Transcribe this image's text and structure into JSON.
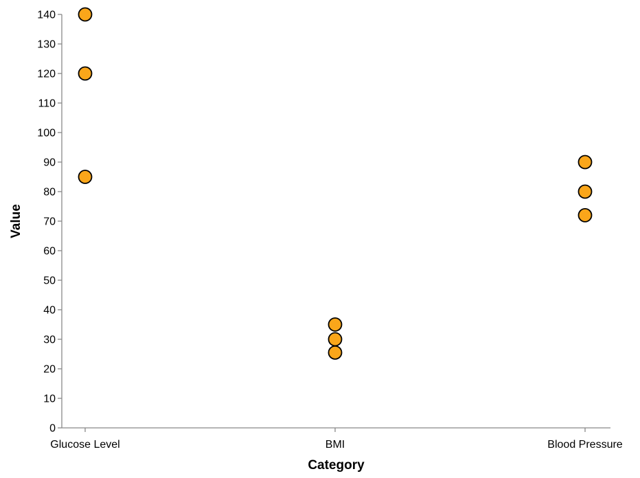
{
  "chart_data": {
    "type": "scatter",
    "title": "",
    "xlabel": "Category",
    "ylabel": "Value",
    "categories": [
      "Glucose Level",
      "BMI",
      "Blood Pressure"
    ],
    "ylim": [
      0,
      140
    ],
    "yticks": [
      0,
      10,
      20,
      30,
      40,
      50,
      60,
      70,
      80,
      90,
      100,
      110,
      120,
      130,
      140
    ],
    "grid": false,
    "points": [
      {
        "x": "Glucose Level",
        "y": 140
      },
      {
        "x": "Glucose Level",
        "y": 120
      },
      {
        "x": "Glucose Level",
        "y": 85
      },
      {
        "x": "BMI",
        "y": 35
      },
      {
        "x": "BMI",
        "y": 30
      },
      {
        "x": "BMI",
        "y": 25.5
      },
      {
        "x": "Blood Pressure",
        "y": 90
      },
      {
        "x": "Blood Pressure",
        "y": 80
      },
      {
        "x": "Blood Pressure",
        "y": 72
      }
    ],
    "colors": {
      "point_fill": "#FAA61A",
      "point_stroke": "#000000",
      "axis": "#888888"
    }
  }
}
